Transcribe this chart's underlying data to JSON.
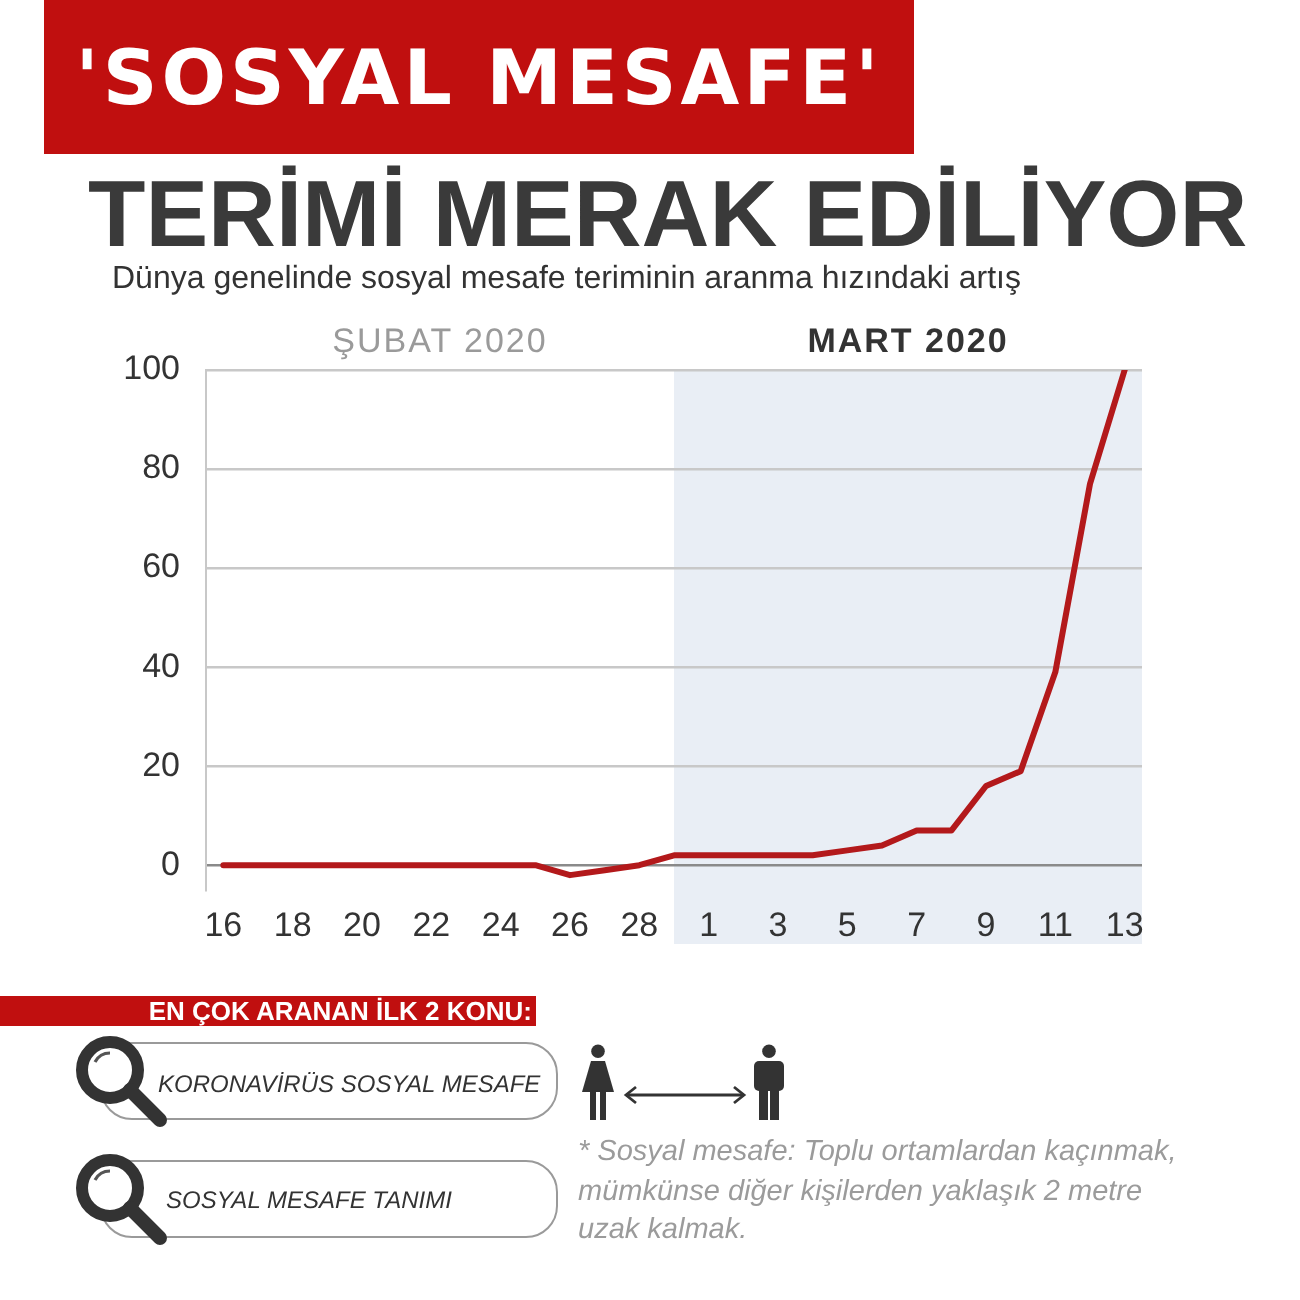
{
  "chart_data": {
    "type": "line",
    "title": "'SOSYAL MESAFE'\nTERİMİ MERAK EDİLİYOR",
    "subtitle": "Dünya genelinde sosyal mesafe teriminin aranma hızındaki artış",
    "x": [
      "2020-02-16",
      "2020-02-17",
      "2020-02-18",
      "2020-02-19",
      "2020-02-20",
      "2020-02-21",
      "2020-02-22",
      "2020-02-23",
      "2020-02-24",
      "2020-02-25",
      "2020-02-26",
      "2020-02-27",
      "2020-02-28",
      "2020-02-29",
      "2020-03-01",
      "2020-03-02",
      "2020-03-03",
      "2020-03-04",
      "2020-03-05",
      "2020-03-06",
      "2020-03-07",
      "2020-03-08",
      "2020-03-09",
      "2020-03-10",
      "2020-03-11",
      "2020-03-12",
      "2020-03-13"
    ],
    "values": [
      0,
      0,
      0,
      0,
      0,
      0,
      0,
      0,
      0,
      0,
      -2,
      -1,
      0,
      2,
      2,
      2,
      2,
      2,
      3,
      4,
      7,
      7,
      16,
      19,
      39,
      77,
      100
    ],
    "color": "#b3191b",
    "xlim": [
      "2020-02-15T12:00",
      "2020-03-13T12:00"
    ],
    "xticks": [
      {
        "value": "2020-02-16",
        "label": "16"
      },
      {
        "value": "2020-02-18",
        "label": "18"
      },
      {
        "value": "2020-02-20",
        "label": "20"
      },
      {
        "value": "2020-02-22",
        "label": "22"
      },
      {
        "value": "2020-02-24",
        "label": "24"
      },
      {
        "value": "2020-02-26",
        "label": "26"
      },
      {
        "value": "2020-02-28",
        "label": "28"
      },
      {
        "value": "2020-03-01",
        "label": "1"
      },
      {
        "value": "2020-03-03",
        "label": "3"
      },
      {
        "value": "2020-03-05",
        "label": "5"
      },
      {
        "value": "2020-03-07",
        "label": "7"
      },
      {
        "value": "2020-03-09",
        "label": "9"
      },
      {
        "value": "2020-03-11",
        "label": "11"
      },
      {
        "value": "2020-03-13",
        "label": "13"
      }
    ],
    "ylim": [
      -5,
      100
    ],
    "yticks": [
      0,
      20,
      40,
      60,
      80,
      100
    ],
    "grid": "y",
    "bands": [
      {
        "axis": "x",
        "from": "2020-02-29",
        "to": "2020-03-13T12:00",
        "label": "MART 2020",
        "color": "#e9eef5"
      }
    ],
    "annotations": [
      "ŞUBAT 2020",
      "EN ÇOK ARANAN İLK 2 KONU:",
      "KORONAVİRÜS SOSYAL MESAFE",
      "SOSYAL MESAFE TANIMI",
      "* Sosyal mesafe: Toplu ortamlardan kaçınmak, mümkünse diğer kişilerden yaklaşık 2 metre uzak kalmak."
    ]
  }
}
